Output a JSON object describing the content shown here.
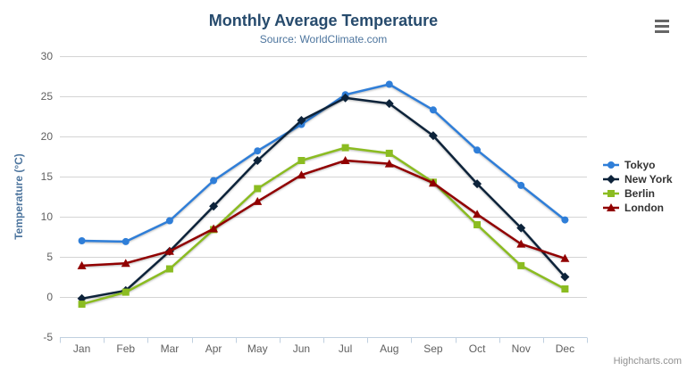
{
  "chart_data": {
    "type": "line",
    "title": "Monthly Average Temperature",
    "subtitle": "Source: WorldClimate.com",
    "ylabel": "Temperature (°C)",
    "xlabel": "",
    "ylim": [
      -5,
      30
    ],
    "yticks": [
      -5,
      0,
      5,
      10,
      15,
      20,
      25,
      30
    ],
    "grid": true,
    "legend_position": "right",
    "categories": [
      "Jan",
      "Feb",
      "Mar",
      "Apr",
      "May",
      "Jun",
      "Jul",
      "Aug",
      "Sep",
      "Oct",
      "Nov",
      "Dec"
    ],
    "series": [
      {
        "name": "Tokyo",
        "color": "#2f7ed8",
        "marker": "circle",
        "values": [
          7.0,
          6.9,
          9.5,
          14.5,
          18.2,
          21.5,
          25.2,
          26.5,
          23.3,
          18.3,
          13.9,
          9.6
        ]
      },
      {
        "name": "New York",
        "color": "#0d233a",
        "marker": "diamond",
        "values": [
          -0.2,
          0.8,
          5.7,
          11.3,
          17.0,
          22.0,
          24.8,
          24.1,
          20.1,
          14.1,
          8.6,
          2.5
        ]
      },
      {
        "name": "Berlin",
        "color": "#8bbc21",
        "marker": "square",
        "values": [
          -0.9,
          0.6,
          3.5,
          8.4,
          13.5,
          17.0,
          18.6,
          17.9,
          14.3,
          9.0,
          3.9,
          1.0
        ]
      },
      {
        "name": "London",
        "color": "#910000",
        "marker": "triangle",
        "values": [
          3.9,
          4.2,
          5.7,
          8.5,
          11.9,
          15.2,
          17.0,
          16.6,
          14.2,
          10.3,
          6.6,
          4.8
        ]
      }
    ],
    "axis_colors": {
      "axis_line": "#c0d0e0",
      "grid_line": "#d4d4d4",
      "tick_label": "#606060",
      "axis_title": "#4d759e"
    }
  },
  "credits": {
    "label": "Highcharts.com"
  }
}
